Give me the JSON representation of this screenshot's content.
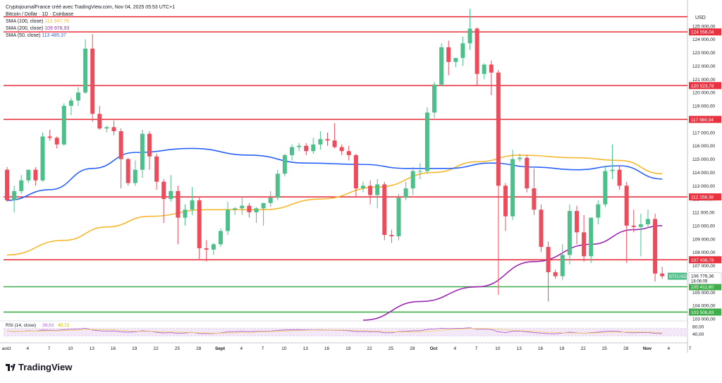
{
  "header": {
    "attribution": "CryptojournalFrance créé avec TradingView.com, Nov 04, 2025 05:53 UTC+1",
    "symbol_line": "Bitcoin / Dollar · 1D · Coinbase",
    "sma100_label": "SMA (100, close)",
    "sma100_value": "113 947,79",
    "sma200_label": "SMA (200, close)",
    "sma200_value": "109 978,93",
    "sma50_label": "SMA (50, close)",
    "sma50_value": "113 485,37",
    "currency": "USD"
  },
  "logo_text": "TradingView",
  "colors": {
    "up": "#4dbf8a",
    "down": "#eb4d5c",
    "sma50": "#2962ff",
    "sma100": "#f5b82e",
    "sma200": "#9c27b0",
    "resistance": "#e8323f",
    "support": "#3fae4a",
    "rsi": "#b15ed0"
  },
  "chart_data": {
    "type": "candlestick",
    "ylim": [
      103000,
      126000
    ],
    "y_ticks": [
      "125 000,00",
      "124 000,00",
      "123 000,00",
      "122 000,00",
      "121 000,00",
      "120 000,00",
      "119 000,00",
      "118 000,00",
      "117 000,00",
      "116 000,00",
      "115 000,00",
      "114 000,00",
      "113 000,00",
      "112 000,00",
      "111 000,00",
      "110 000,00",
      "109 000,00",
      "108 000,00",
      "107 000,00",
      "106 000,00",
      "105 000,00",
      "104 000,00",
      "103 000,00"
    ],
    "x_ticks": [
      "août",
      "4",
      "7",
      "10",
      "13",
      "16",
      "19",
      "22",
      "25",
      "28",
      "Sept",
      "4",
      "7",
      "10",
      "13",
      "16",
      "19",
      "22",
      "25",
      "28",
      "Oct",
      "4",
      "7",
      "10",
      "13",
      "16",
      "19",
      "22",
      "25",
      "28",
      "Nov",
      "4",
      "7"
    ],
    "candles": [
      [
        114200,
        114400,
        111800,
        111900
      ],
      [
        111900,
        113000,
        111000,
        112600
      ],
      [
        112600,
        113800,
        112400,
        113400
      ],
      [
        113400,
        114200,
        113200,
        114200
      ],
      [
        114200,
        114400,
        113000,
        113400
      ],
      [
        113400,
        117000,
        113300,
        116700
      ],
      [
        116700,
        117200,
        116400,
        116600
      ],
      [
        116600,
        116700,
        115800,
        116100
      ],
      [
        116100,
        119200,
        116000,
        119000
      ],
      [
        119000,
        119600,
        118300,
        119400
      ],
      [
        119400,
        120400,
        119000,
        120000
      ],
      [
        120000,
        124000,
        119900,
        123300
      ],
      [
        123300,
        124400,
        117800,
        118400
      ],
      [
        118400,
        119000,
        117200,
        117300
      ],
      [
        117300,
        117500,
        117000,
        117400
      ],
      [
        117400,
        117900,
        116800,
        117100
      ],
      [
        117100,
        117300,
        112800,
        115000
      ],
      [
        115000,
        115100,
        113000,
        113200
      ],
      [
        113200,
        114900,
        113000,
        114200
      ],
      [
        114200,
        117200,
        113600,
        116900
      ],
      [
        116900,
        117100,
        114200,
        115200
      ],
      [
        115200,
        115400,
        112700,
        113300
      ],
      [
        113300,
        113500,
        110200,
        112000
      ],
      [
        112000,
        113800,
        111800,
        112600
      ],
      [
        112600,
        113000,
        108600,
        110600
      ],
      [
        110600,
        111600,
        110000,
        111200
      ],
      [
        111200,
        112900,
        110800,
        111900
      ],
      [
        111900,
        112100,
        107500,
        108300
      ],
      [
        108300,
        108900,
        107300,
        108200
      ],
      [
        108200,
        108700,
        107800,
        108600
      ],
      [
        108600,
        109800,
        108400,
        109600
      ],
      [
        109600,
        111800,
        109300,
        111200
      ],
      [
        111200,
        111400,
        110800,
        111300
      ],
      [
        111300,
        112200,
        110800,
        111500
      ],
      [
        111500,
        111700,
        110600,
        111000
      ],
      [
        111000,
        111400,
        110200,
        111300
      ],
      [
        111300,
        111700,
        110000,
        111700
      ],
      [
        111700,
        112600,
        111400,
        112100
      ],
      [
        112100,
        114200,
        111900,
        113900
      ],
      [
        113900,
        115400,
        113700,
        115300
      ],
      [
        115300,
        116100,
        114900,
        115900
      ],
      [
        115900,
        116200,
        115600,
        116000
      ],
      [
        116000,
        116200,
        115300,
        115600
      ],
      [
        115600,
        116600,
        115400,
        116100
      ],
      [
        116100,
        117100,
        115700,
        116500
      ],
      [
        116500,
        117000,
        116000,
        116400
      ],
      [
        116400,
        117700,
        115800,
        115900
      ],
      [
        115900,
        116100,
        115300,
        115600
      ],
      [
        115600,
        116000,
        114900,
        115300
      ],
      [
        115300,
        115400,
        112100,
        112800
      ],
      [
        112800,
        113300,
        112500,
        113000
      ],
      [
        113000,
        113400,
        111600,
        112300
      ],
      [
        112300,
        113500,
        111300,
        113100
      ],
      [
        113100,
        113300,
        108900,
        109300
      ],
      [
        109300,
        109700,
        108700,
        109200
      ],
      [
        109200,
        112400,
        108900,
        112100
      ],
      [
        112100,
        113300,
        111900,
        112800
      ],
      [
        112800,
        114400,
        112300,
        114100
      ],
      [
        114100,
        114700,
        113500,
        114100
      ],
      [
        114100,
        118900,
        113900,
        118500
      ],
      [
        118500,
        120800,
        118100,
        120600
      ],
      [
        120600,
        123700,
        120500,
        123400
      ],
      [
        123400,
        123900,
        121300,
        122300
      ],
      [
        122300,
        122600,
        121900,
        122600
      ],
      [
        122600,
        124200,
        122000,
        123700
      ],
      [
        123700,
        126300,
        123200,
        124800
      ],
      [
        124800,
        124900,
        120500,
        121400
      ],
      [
        121400,
        122200,
        121000,
        122100
      ],
      [
        122100,
        122400,
        119800,
        121500
      ],
      [
        121500,
        121700,
        104800,
        113000
      ],
      [
        113000,
        113200,
        109600,
        110700
      ],
      [
        110700,
        115700,
        110400,
        115000
      ],
      [
        115000,
        115400,
        114800,
        115100
      ],
      [
        115100,
        115300,
        112500,
        112800
      ],
      [
        112800,
        114300,
        110800,
        111200
      ],
      [
        111200,
        111600,
        108000,
        108400
      ],
      [
        108400,
        108800,
        104300,
        106500
      ],
      [
        106500,
        106700,
        106000,
        106200
      ],
      [
        106200,
        108600,
        105900,
        107800
      ],
      [
        107800,
        111600,
        107100,
        111100
      ],
      [
        111100,
        111500,
        108600,
        109500
      ],
      [
        109500,
        110800,
        107300,
        107700
      ],
      [
        107700,
        110600,
        107200,
        110600
      ],
      [
        110600,
        111900,
        110100,
        111600
      ],
      [
        111600,
        114500,
        111400,
        114100
      ],
      [
        114100,
        116100,
        113500,
        114200
      ],
      [
        114200,
        114500,
        112700,
        113000
      ],
      [
        113000,
        113300,
        107200,
        110000
      ],
      [
        110000,
        111200,
        109500,
        109900
      ],
      [
        109900,
        110900,
        107700,
        110100
      ],
      [
        110100,
        111200,
        109800,
        110500
      ],
      [
        110500,
        110900,
        105800,
        106400
      ],
      [
        106400,
        106900,
        106000,
        106200
      ]
    ],
    "sma50": [
      [
        0,
        111900
      ],
      [
        6,
        112700
      ],
      [
        12,
        114300
      ],
      [
        18,
        115500
      ],
      [
        26,
        115800
      ],
      [
        34,
        115300
      ],
      [
        42,
        114700
      ],
      [
        50,
        114600
      ],
      [
        56,
        114300
      ],
      [
        62,
        114300
      ],
      [
        68,
        114700
      ],
      [
        74,
        114400
      ],
      [
        80,
        114200
      ],
      [
        86,
        114500
      ],
      [
        92,
        113500
      ]
    ],
    "sma100": [
      [
        0,
        107800
      ],
      [
        8,
        108900
      ],
      [
        14,
        109900
      ],
      [
        20,
        110700
      ],
      [
        28,
        111200
      ],
      [
        36,
        111200
      ],
      [
        44,
        112000
      ],
      [
        52,
        112900
      ],
      [
        60,
        114000
      ],
      [
        66,
        114800
      ],
      [
        72,
        115300
      ],
      [
        80,
        115100
      ],
      [
        86,
        114900
      ],
      [
        92,
        113900
      ]
    ],
    "sma200": [
      [
        50,
        102900
      ],
      [
        58,
        104300
      ],
      [
        66,
        105400
      ],
      [
        74,
        107300
      ],
      [
        82,
        108600
      ],
      [
        88,
        109700
      ],
      [
        92,
        110000
      ]
    ],
    "resistance_levels": [
      124556.04,
      120523.78,
      117980.94,
      112158.38,
      107436.78
    ],
    "support_levels": [
      105411.6,
      103506.83
    ],
    "price_labels": [
      "124 556,04",
      "120 523,78",
      "117 980,94",
      "112 158,38",
      "107 436,78",
      "105 411,60",
      "103 506,83"
    ],
    "current_price_label": "106 776,36",
    "current_symbol": "BTCUSD",
    "current_countdown": "18:06:09",
    "rsi": {
      "label": "RSI (14, close)",
      "value1": "39,93",
      "value2": "45,71",
      "ticks": [
        "80,00",
        "40,00"
      ],
      "ylim": [
        0,
        100
      ],
      "values": [
        57,
        54,
        55,
        58,
        56,
        62,
        61,
        60,
        64,
        66,
        67,
        72,
        62,
        58,
        56,
        57,
        52,
        50,
        52,
        58,
        55,
        50,
        46,
        48,
        44,
        46,
        49,
        43,
        42,
        43,
        46,
        52,
        53,
        55,
        53,
        54,
        55,
        56,
        60,
        62,
        63,
        63,
        62,
        62,
        63,
        62,
        61,
        60,
        58,
        53,
        54,
        52,
        53,
        47,
        47,
        53,
        55,
        58,
        58,
        65,
        68,
        72,
        70,
        71,
        72,
        74,
        66,
        67,
        65,
        52,
        48,
        55,
        56,
        52,
        48,
        45,
        42,
        41,
        46,
        50,
        47,
        44,
        48,
        50,
        55,
        56,
        54,
        48,
        47,
        48,
        49,
        44,
        43
      ]
    }
  }
}
